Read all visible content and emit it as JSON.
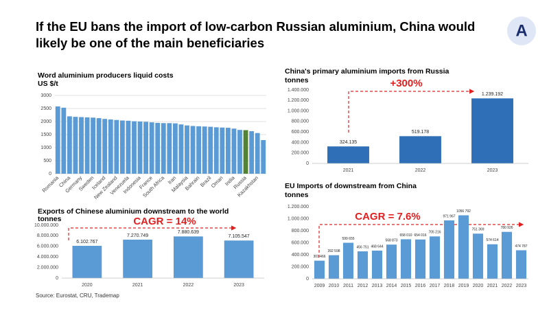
{
  "title": "If the EU bans the import of low-carbon Russian aluminium, China would likely be one of the main beneficiaries",
  "logo": "A",
  "source": "Source: Eurostat, CRU, Trademap",
  "chart_data": [
    {
      "type": "bar",
      "title": "Word aluminium producers liquid costs",
      "subtitle": "US $/t",
      "categories": [
        "Romania",
        null,
        "China",
        null,
        "Germany",
        null,
        "Sweden",
        null,
        "Iceland",
        null,
        "New Zealand",
        null,
        "Venezuela",
        null,
        "Indonesia",
        null,
        "France",
        null,
        "South Africa",
        null,
        "Iran",
        null,
        "Malaysia",
        null,
        "Bahrain",
        null,
        "Brazil",
        null,
        "Oman",
        null,
        "India",
        null,
        "Russia",
        null,
        "Kazakhstan",
        null
      ],
      "values": [
        2580,
        2530,
        2200,
        2180,
        2170,
        2160,
        2150,
        2130,
        2100,
        2080,
        2060,
        2040,
        2030,
        2010,
        2000,
        1990,
        1970,
        1950,
        1940,
        1940,
        1930,
        1890,
        1850,
        1830,
        1820,
        1810,
        1800,
        1780,
        1770,
        1760,
        1730,
        1680,
        1670,
        1630,
        1560,
        1290
      ],
      "colors": [
        "#5b9bd5",
        "#5b9bd5",
        "#5b9bd5",
        "#5b9bd5",
        "#5b9bd5",
        "#5b9bd5",
        "#5b9bd5",
        "#5b9bd5",
        "#5b9bd5",
        "#5b9bd5",
        "#5b9bd5",
        "#5b9bd5",
        "#5b9bd5",
        "#5b9bd5",
        "#5b9bd5",
        "#5b9bd5",
        "#5b9bd5",
        "#5b9bd5",
        "#5b9bd5",
        "#5b9bd5",
        "#5b9bd5",
        "#5b9bd5",
        "#5b9bd5",
        "#5b9bd5",
        "#5b9bd5",
        "#5b9bd5",
        "#5b9bd5",
        "#5b9bd5",
        "#5b9bd5",
        "#5b9bd5",
        "#5b9bd5",
        "#5b9bd5",
        "#548235",
        "#5b9bd5",
        "#5b9bd5",
        "#5b9bd5"
      ],
      "ylim": [
        0,
        3000
      ],
      "yticks": [
        0,
        500,
        1000,
        1500,
        2000,
        2500,
        3000
      ],
      "grid": true,
      "rotate_labels": true
    },
    {
      "type": "bar",
      "title": "China's primary aluminium imports from Russia",
      "subtitle": "tonnes",
      "categories": [
        "2021",
        "2022",
        "2023"
      ],
      "values": [
        324135,
        519178,
        1239192
      ],
      "value_labels": [
        "324.135",
        "519.178",
        "1.239.192"
      ],
      "color": "#2e6fb7",
      "ylim": [
        0,
        1400000
      ],
      "yticks": [
        0,
        {
          "value": 200000,
          "label": "200.000"
        },
        {
          "value": 400000,
          "label": "400.000"
        },
        {
          "value": 600000,
          "label": "600.000"
        },
        {
          "value": 800000,
          "label": "800.000"
        },
        {
          "value": 1000000,
          "label": "1.000.000"
        },
        {
          "value": 1200000,
          "label": "1.200.000"
        },
        {
          "value": 1400000,
          "label": "1.400.000"
        }
      ],
      "grid": false,
      "annotation": "+300%"
    },
    {
      "type": "bar",
      "title": "Exports of Chinese aluminium downstream to the world",
      "subtitle": "tonnes",
      "categories": [
        "2020",
        "2021",
        "2022",
        "2023"
      ],
      "values": [
        6102767,
        7270749,
        7880639,
        7105547
      ],
      "value_labels": [
        "6.102.767",
        "7.270.749",
        "7.880.639",
        "7.105.547"
      ],
      "color": "#5b9bd5",
      "ylim": [
        0,
        10000000
      ],
      "yticks": [
        0,
        {
          "value": 2000000,
          "label": "2.000.000"
        },
        {
          "value": 4000000,
          "label": "4.000.000"
        },
        {
          "value": 6000000,
          "label": "6.000.000"
        },
        {
          "value": 8000000,
          "label": "8.000.000"
        },
        {
          "value": 10000000,
          "label": "10.000.000"
        }
      ],
      "grid": false,
      "annotation": "CAGR = 14%"
    },
    {
      "type": "bar",
      "title": "EU Imports of downstream from China",
      "subtitle": "tonnes",
      "categories": [
        "2009",
        "2010",
        "2011",
        "2012",
        "2013",
        "2014",
        "2015",
        "2016",
        "2017",
        "2018",
        "2019",
        "2020",
        "2021",
        "2022",
        "2023"
      ],
      "values": [
        301466,
        392598,
        599655,
        456751,
        468644,
        568873,
        658010,
        654016,
        705216,
        971967,
        1056792,
        751369,
        574614,
        780926,
        474787
      ],
      "value_labels": [
        "301 466",
        "392 598",
        "599 655",
        "456 751",
        "468 644",
        "568 873",
        "658 010",
        "654 016",
        "705 216",
        "971 967",
        "1056 792",
        "751 369",
        "574 614",
        "780 926",
        "474 787"
      ],
      "color": "#5b9bd5",
      "ylim": [
        0,
        1200000
      ],
      "yticks": [
        0,
        {
          "value": 200000,
          "label": "200.000"
        },
        {
          "value": 400000,
          "label": "400.000"
        },
        {
          "value": 600000,
          "label": "600.000"
        },
        {
          "value": 800000,
          "label": "800.000"
        },
        {
          "value": 1000000,
          "label": "1.000.000"
        },
        {
          "value": 1200000,
          "label": "1.200.000"
        }
      ],
      "grid": false,
      "annotation": "CAGR = 7.6%"
    }
  ]
}
